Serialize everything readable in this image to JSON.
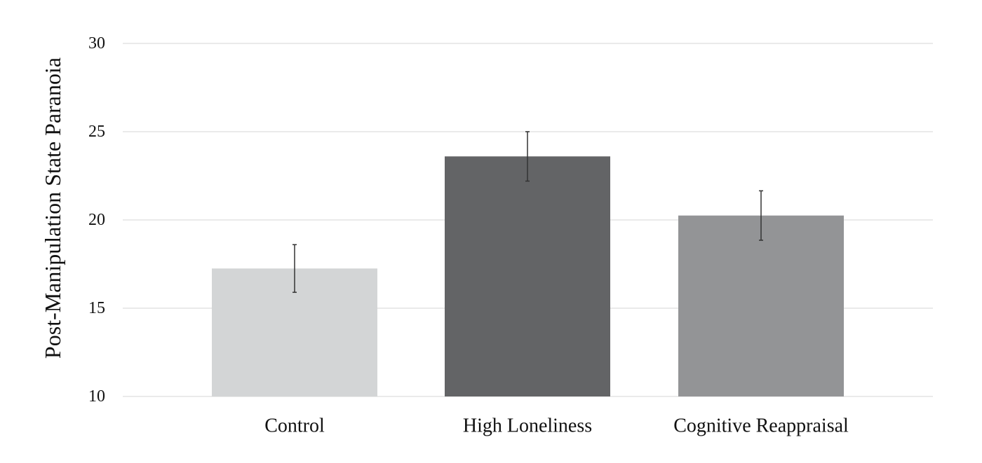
{
  "chart_data": {
    "type": "bar",
    "title": "",
    "xlabel": "",
    "ylabel": "Post-Manipulation State Paranoia",
    "categories": [
      "Control",
      "High Loneliness",
      "Cognitive Reappraisal"
    ],
    "values": [
      17.25,
      23.6,
      20.25
    ],
    "error": [
      1.35,
      1.4,
      1.4
    ],
    "bar_colors": [
      "#d3d5d6",
      "#636466",
      "#939496"
    ],
    "ylim": [
      10,
      30
    ],
    "yticks": [
      10,
      15,
      20,
      25,
      30
    ],
    "ytick_labels": [
      "10",
      "15",
      "20",
      "25",
      "30"
    ],
    "grid": true,
    "legend": false
  }
}
